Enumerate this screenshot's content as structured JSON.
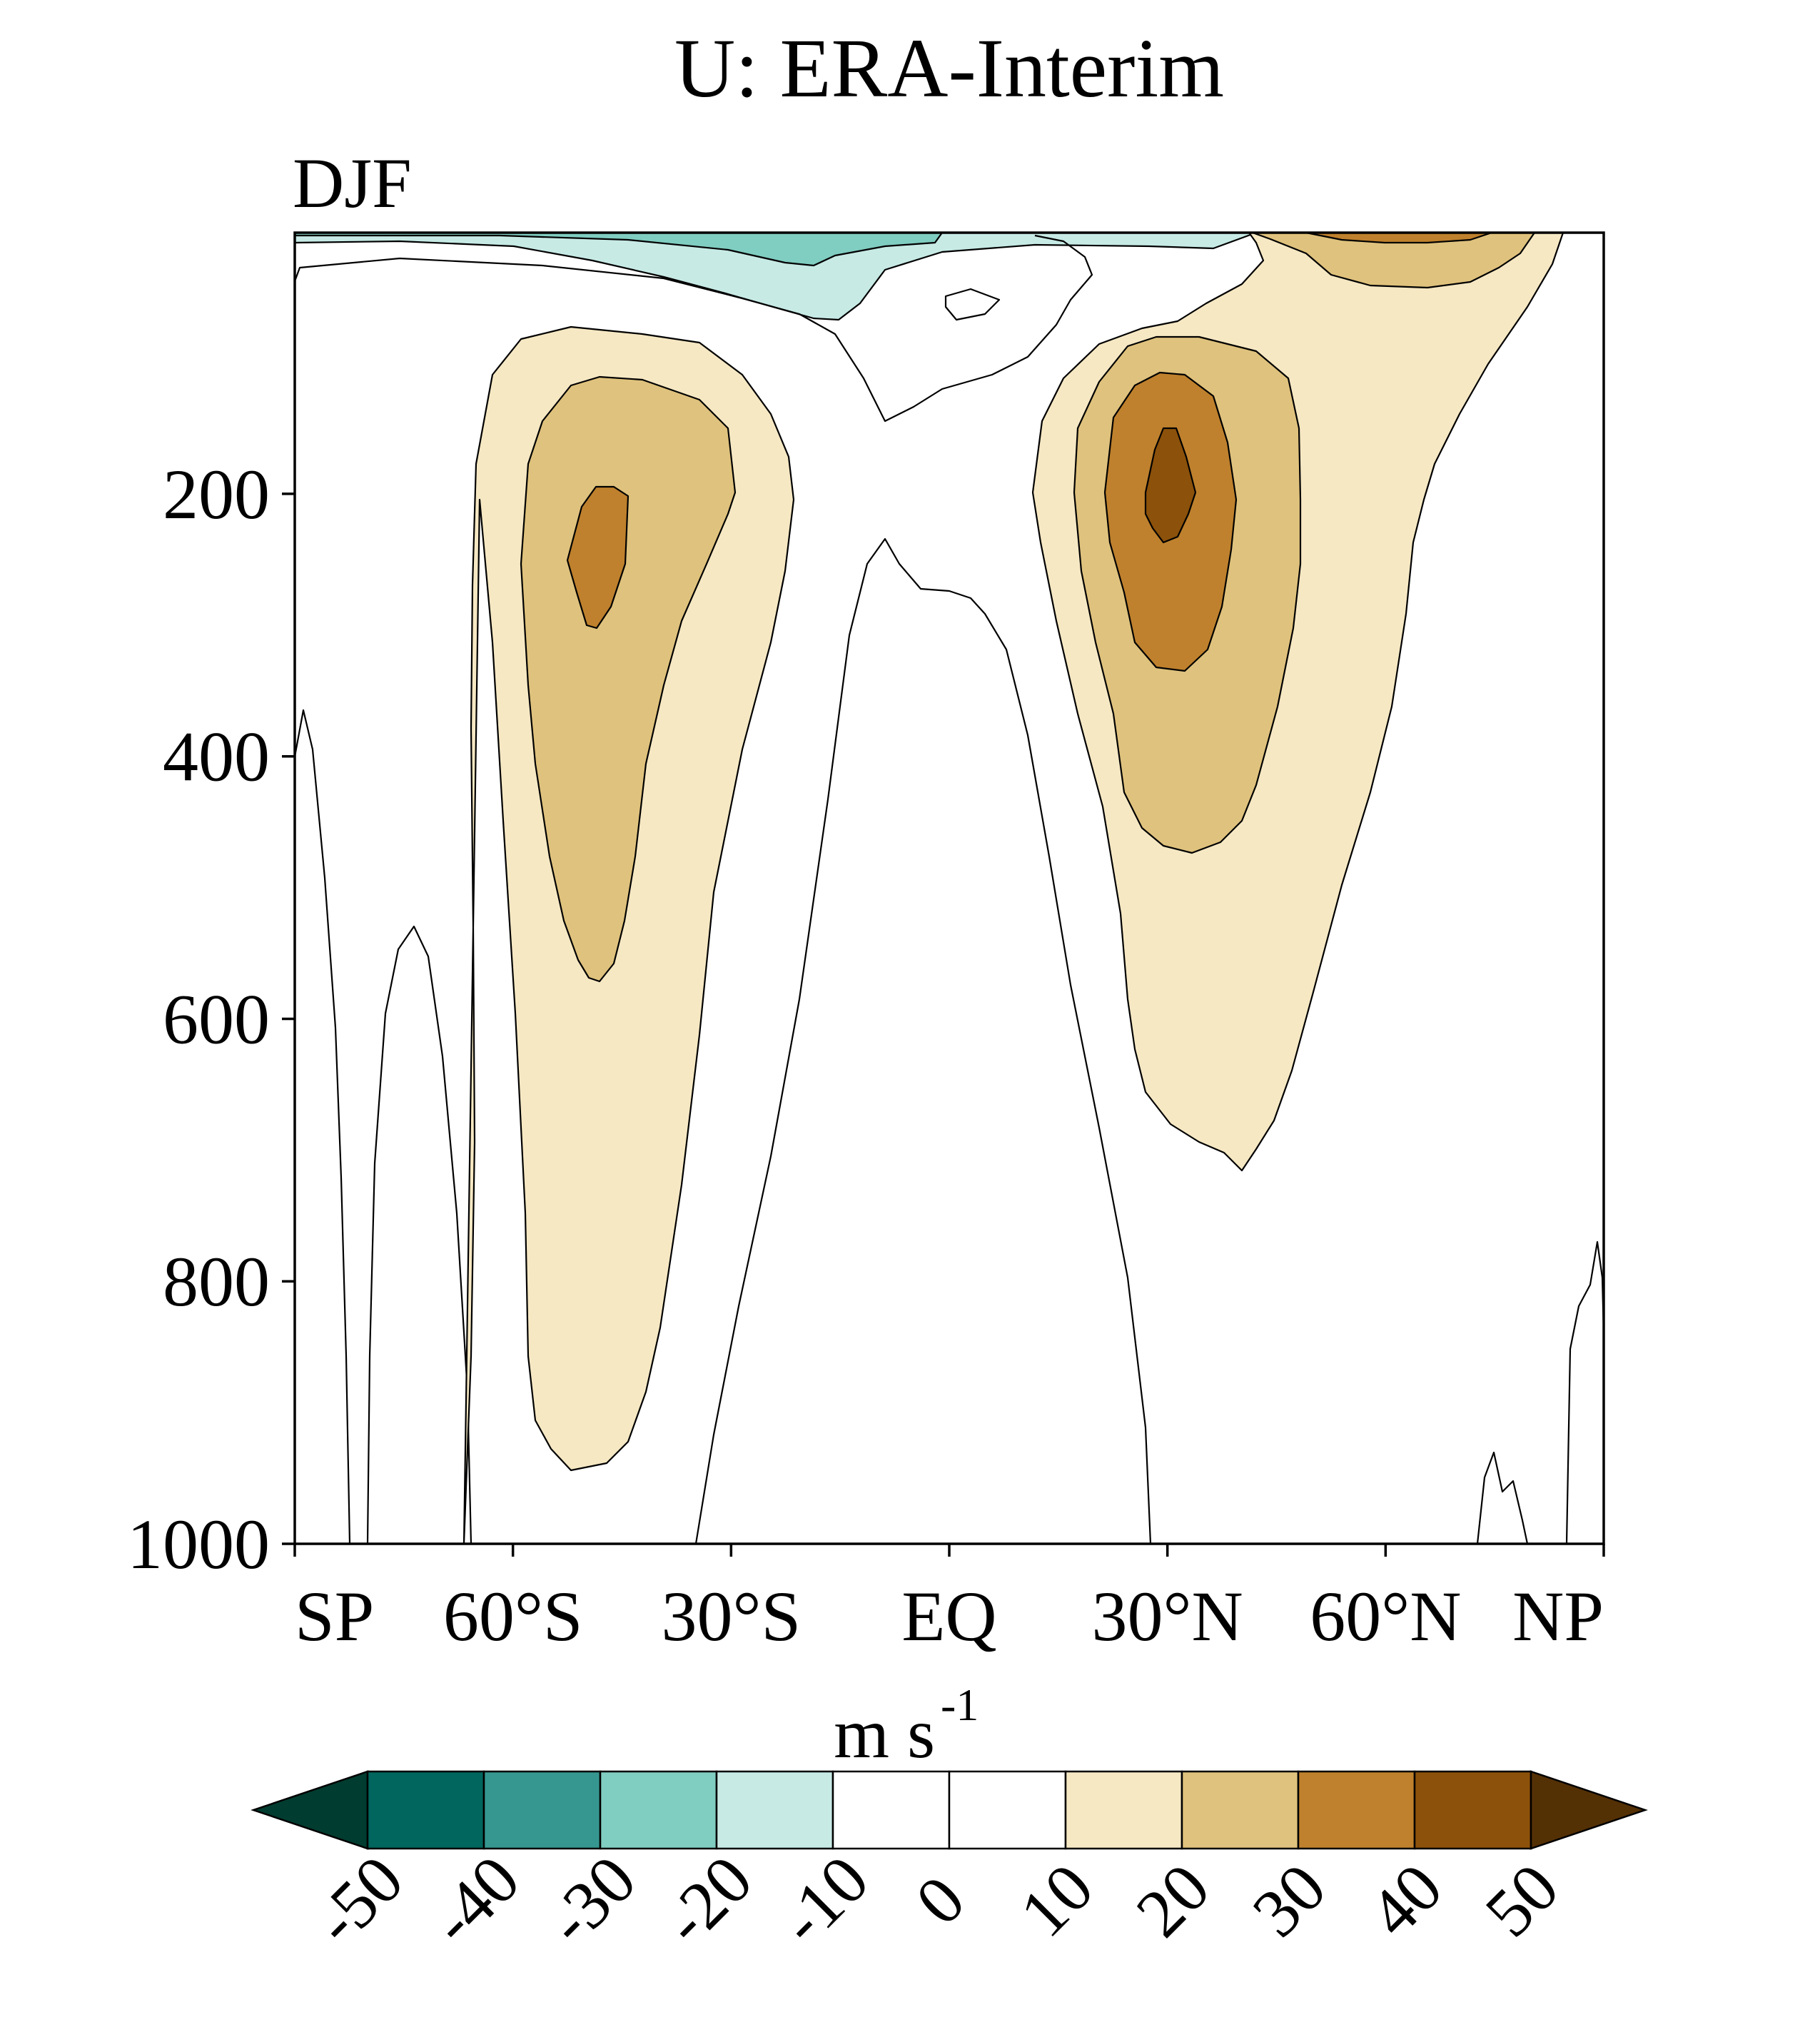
{
  "chart_data": {
    "type": "contour",
    "title": "U: ERA-Interim",
    "subtitle": "DJF",
    "xlabel": "",
    "ylabel": "",
    "x_ticks": [
      {
        "value": -90,
        "label": "SP"
      },
      {
        "value": -60,
        "label": "60°S"
      },
      {
        "value": -30,
        "label": "30°S"
      },
      {
        "value": 0,
        "label": "EQ"
      },
      {
        "value": 30,
        "label": "30°N"
      },
      {
        "value": 60,
        "label": "60°N"
      },
      {
        "value": 90,
        "label": "NP"
      }
    ],
    "y_ticks": [
      {
        "value": 200,
        "label": "200"
      },
      {
        "value": 400,
        "label": "400"
      },
      {
        "value": 600,
        "label": "600"
      },
      {
        "value": 800,
        "label": "800"
      },
      {
        "value": 1000,
        "label": "1000"
      }
    ],
    "xlim": [
      -90,
      90
    ],
    "ylim": [
      1000,
      1
    ],
    "y_inverted": true,
    "colorbar": {
      "label": "m s",
      "label_superscript": "-1",
      "levels": [
        -50,
        -40,
        -30,
        -20,
        -10,
        0,
        10,
        20,
        30,
        40,
        50
      ],
      "colors": [
        "#003c30",
        "#01665e",
        "#35978f",
        "#80cdc1",
        "#c7eae5",
        "#ffffff",
        "#ffffff",
        "#f6e8c3",
        "#dfc27d",
        "#bf812d",
        "#8c510a",
        "#543005"
      ]
    },
    "features": [
      {
        "name": "southern-jet",
        "lat": -47,
        "pressure": 250,
        "max_level": 30
      },
      {
        "name": "northern-jet",
        "lat": 30,
        "pressure": 200,
        "max_level": 40
      },
      {
        "name": "tropical-easterlies",
        "lat": -30,
        "pressure": 10,
        "min_level": -20
      }
    ]
  }
}
